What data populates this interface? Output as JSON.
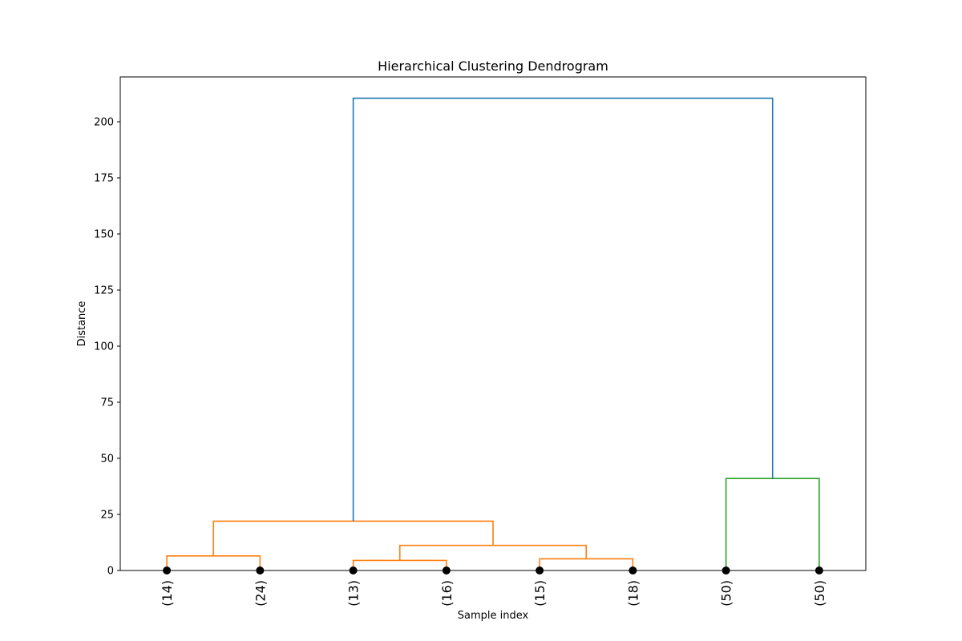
{
  "chart_data": {
    "type": "dendrogram",
    "title": "Hierarchical Clustering Dendrogram",
    "xlabel": "Sample index",
    "ylabel": "Distance",
    "ylim": [
      0,
      220
    ],
    "yticks": [
      0,
      25,
      50,
      75,
      100,
      125,
      150,
      175,
      200
    ],
    "leaves": [
      "(14)",
      "(24)",
      "(13)",
      "(16)",
      "(15)",
      "(18)",
      "(50)",
      "(50)"
    ],
    "colors": {
      "orange": "#ff7f0e",
      "green": "#2ca02c",
      "blue": "#1f77b4",
      "frame": "#000000",
      "marker": "#000000"
    },
    "links": [
      {
        "left": 0,
        "right": 1,
        "height": 6.5,
        "color": "orange"
      },
      {
        "left": 2,
        "right": 3,
        "height": 4.5,
        "color": "orange"
      },
      {
        "left": 4,
        "right": 5,
        "height": 5.2,
        "color": "orange"
      },
      {
        "left": "2-3",
        "right": "4-5",
        "height": 11.2,
        "color": "orange"
      },
      {
        "left": "0-1",
        "right": "2-5",
        "height": 22.0,
        "color": "orange"
      },
      {
        "left": 6,
        "right": 7,
        "height": 41.0,
        "color": "green"
      },
      {
        "left": "0-5",
        "right": "6-7",
        "height": 210.5,
        "color": "blue"
      }
    ]
  }
}
